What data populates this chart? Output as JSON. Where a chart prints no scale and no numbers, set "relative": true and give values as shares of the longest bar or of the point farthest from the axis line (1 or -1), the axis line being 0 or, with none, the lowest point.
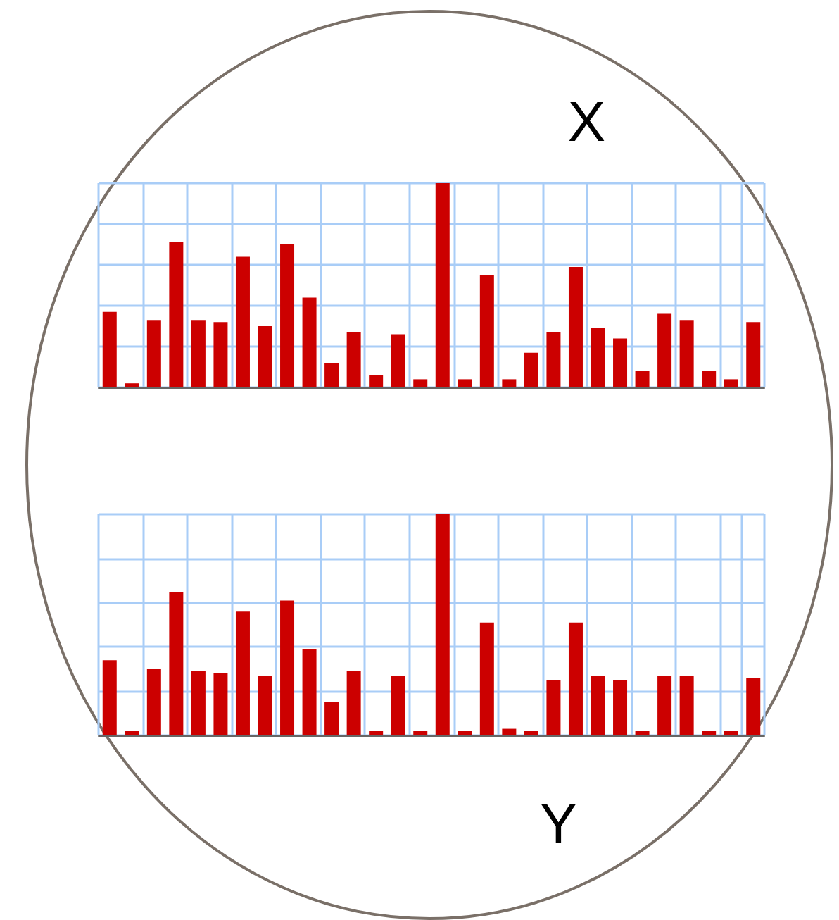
{
  "chart_data": [
    {
      "type": "bar",
      "title": "X",
      "relative": true,
      "grid": true,
      "color": "#cc0000",
      "categories": [
        null,
        null,
        null,
        null,
        null,
        null,
        null,
        null,
        null,
        null,
        null,
        null,
        null,
        null,
        null,
        null,
        null,
        null,
        null,
        null,
        null,
        null,
        null,
        null,
        null,
        null,
        null,
        null,
        null,
        null
      ],
      "values": [
        0.37,
        0.02,
        0.33,
        0.71,
        0.33,
        0.32,
        0.64,
        0.3,
        0.7,
        0.44,
        0.12,
        0.27,
        0.06,
        0.26,
        0.04,
        1,
        0.04,
        0.55,
        0.04,
        0.17,
        0.27,
        0.59,
        0.29,
        0.24,
        0.08,
        0.36,
        0.33,
        0.08,
        0.04,
        0.32
      ]
    },
    {
      "type": "bar",
      "title": "Y",
      "relative": true,
      "grid": true,
      "color": "#cc0000",
      "categories": [
        null,
        null,
        null,
        null,
        null,
        null,
        null,
        null,
        null,
        null,
        null,
        null,
        null,
        null,
        null,
        null,
        null,
        null,
        null,
        null,
        null,
        null,
        null,
        null,
        null,
        null,
        null,
        null,
        null,
        null
      ],
      "values": [
        0.34,
        0.02,
        0.3,
        0.65,
        0.29,
        0.28,
        0.56,
        0.27,
        0.61,
        0.39,
        0.15,
        0.29,
        0.02,
        0.27,
        0.02,
        1,
        0.02,
        0.51,
        0.03,
        0.02,
        0.25,
        0.51,
        0.27,
        0.25,
        0.02,
        0.27,
        0.27,
        0.02,
        0.02,
        0.26
      ]
    }
  ]
}
